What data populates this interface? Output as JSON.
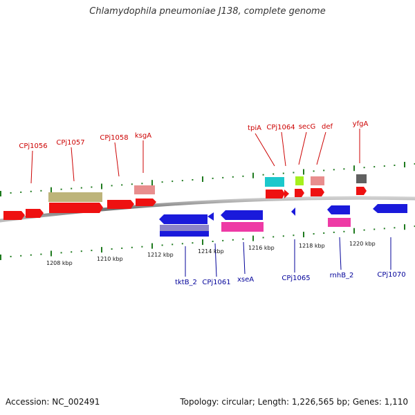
{
  "title": "Chlamydophila pneumoniae J138, complete genome",
  "footer": {
    "accession": "Accession: NC_002491",
    "summary": "Topology: circular; Length: 1,226,565 bp; Genes: 1,110"
  },
  "colors": {
    "forward_gene": "#ee1111",
    "reverse_gene": "#1a1adb",
    "forward_label": "#cc0000",
    "reverse_label": "#000099",
    "backbone": "#808080",
    "tick": "#1e7a1e"
  },
  "diagram": {
    "ticks": [
      "1208 kbp",
      "1210 kbp",
      "1212 kbp",
      "1214 kbp",
      "1216 kbp",
      "1218 kbp",
      "1220 kbp"
    ],
    "forward_labels": [
      "CPj1056",
      "CPj1057",
      "CPj1058",
      "ksgA",
      "tpiA",
      "CPj1064",
      "secG",
      "def",
      "yfgA"
    ],
    "reverse_labels": [
      "tktB_2",
      "CPj1061",
      "xseA",
      "CPj1065",
      "rnhB_2",
      "CPj1070"
    ]
  }
}
